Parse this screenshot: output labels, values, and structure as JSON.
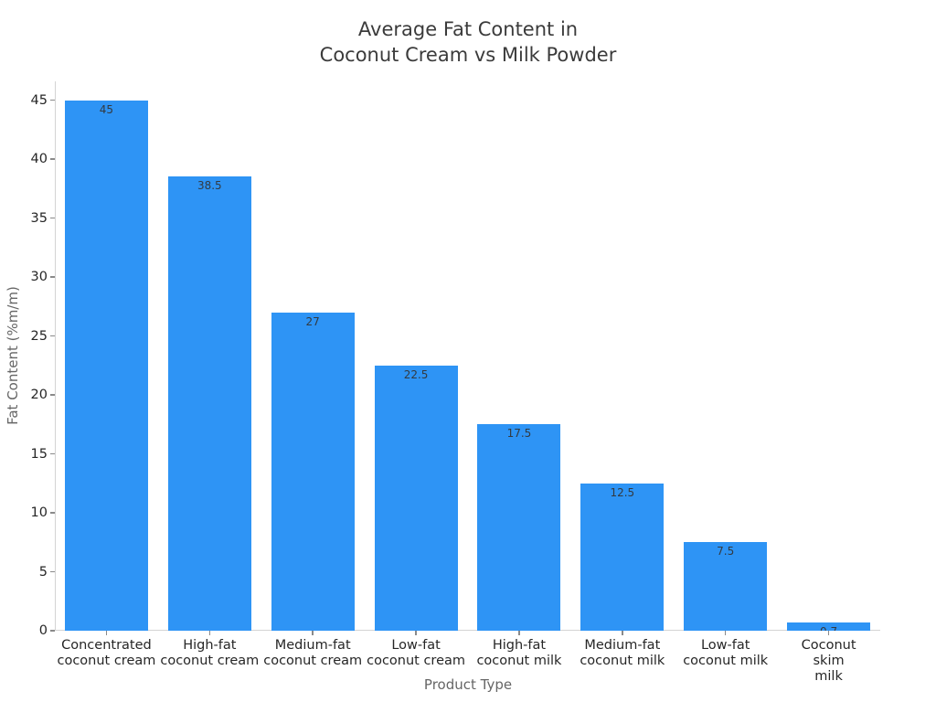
{
  "chart_data": {
    "type": "bar",
    "title": "Average Fat Content in\nCoconut Cream vs Milk Powder",
    "xlabel": "Product Type",
    "ylabel": "Fat Content (%m/m)",
    "categories": [
      "Concentrated\ncoconut cream",
      "High-fat\ncoconut cream",
      "Medium-fat\ncoconut cream",
      "Low-fat\ncoconut cream",
      "High-fat\ncoconut milk",
      "Medium-fat\ncoconut milk",
      "Low-fat\ncoconut milk",
      "Coconut\nskim milk"
    ],
    "values": [
      45,
      38.5,
      27,
      22.5,
      17.5,
      12.5,
      7.5,
      0.7
    ],
    "value_labels": [
      "45",
      "38.5",
      "27",
      "22.5",
      "17.5",
      "12.5",
      "7.5",
      "0.7"
    ],
    "yticks": [
      0,
      5,
      10,
      15,
      20,
      25,
      30,
      35,
      40,
      45
    ],
    "ylim": [
      0,
      46.6
    ],
    "bar_color": "#2e94f5",
    "grid": false,
    "legend": null
  }
}
